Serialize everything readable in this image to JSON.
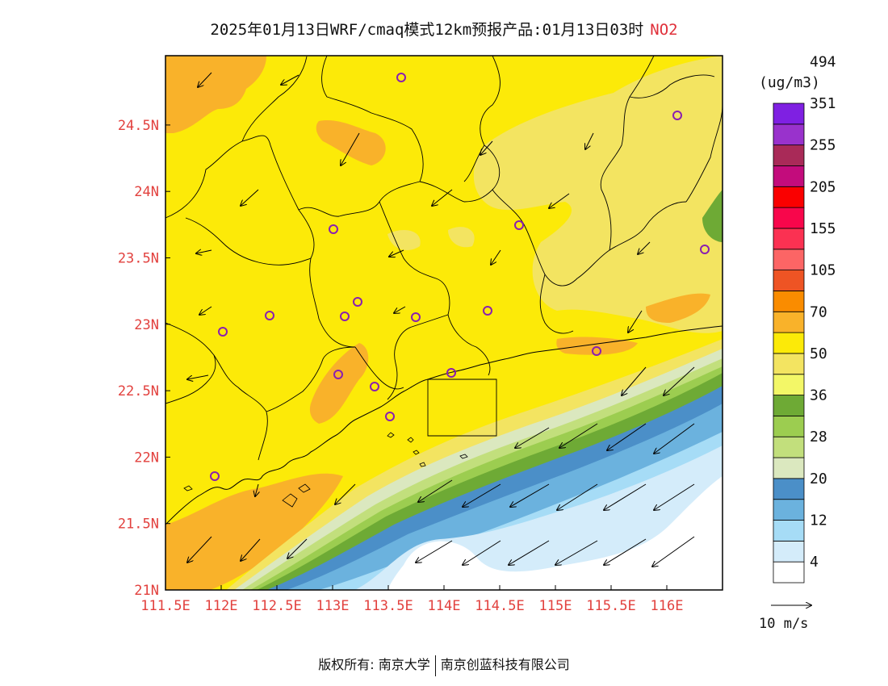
{
  "title": {
    "main": "2025年01月13日WRF/cmaq模式12km预报产品:01月13日03时",
    "pollutant": "NO2"
  },
  "colorbar": {
    "unit": "(ug/m3)",
    "colors": [
      "#ffffff",
      "#d4ecfa",
      "#a6dcf6",
      "#6bb2de",
      "#4b8fc8",
      "#dbe8bf",
      "#c2df7c",
      "#9ccd50",
      "#6eaa35",
      "#f3f767",
      "#f3e461",
      "#fcea08",
      "#f9b22a",
      "#fa8c00",
      "#ee5424",
      "#fc6565",
      "#fb3152",
      "#f8064b",
      "#fa0000",
      "#c30c7c",
      "#a92a58",
      "#9932cc",
      "#7f20e2"
    ],
    "labels": [
      "4",
      "12",
      "20",
      "28",
      "36",
      "50",
      "70",
      "105",
      "155",
      "205",
      "255",
      "351",
      "494"
    ]
  },
  "axes": {
    "x_ticks": [
      "111.5E",
      "112E",
      "112.5E",
      "113E",
      "113.5E",
      "114E",
      "114.5E",
      "115E",
      "115.5E",
      "116E"
    ],
    "y_ticks": [
      "21N",
      "21.5N",
      "22N",
      "22.5N",
      "23N",
      "23.5N",
      "24N",
      "24.5N"
    ]
  },
  "wind_scale_label": "10 m/s",
  "footer": {
    "left": "版权所有: 南京大学",
    "right": "南京创蓝科技有限公司"
  },
  "map": {
    "field_colors": {
      "base": "#fcea08",
      "high": "#f9b22a",
      "light": "#f3e461",
      "green_dark": "#6eaa35",
      "green_mid": "#9ccd50",
      "green_light": "#c2df7c",
      "pale_green": "#dbe8bf",
      "blue_dark": "#4b8fc8",
      "blue_mid": "#6bb2de",
      "blue_light": "#a6dcf6",
      "blue_pale": "#d4ecfa"
    },
    "station_color": "#8a1fb0"
  }
}
